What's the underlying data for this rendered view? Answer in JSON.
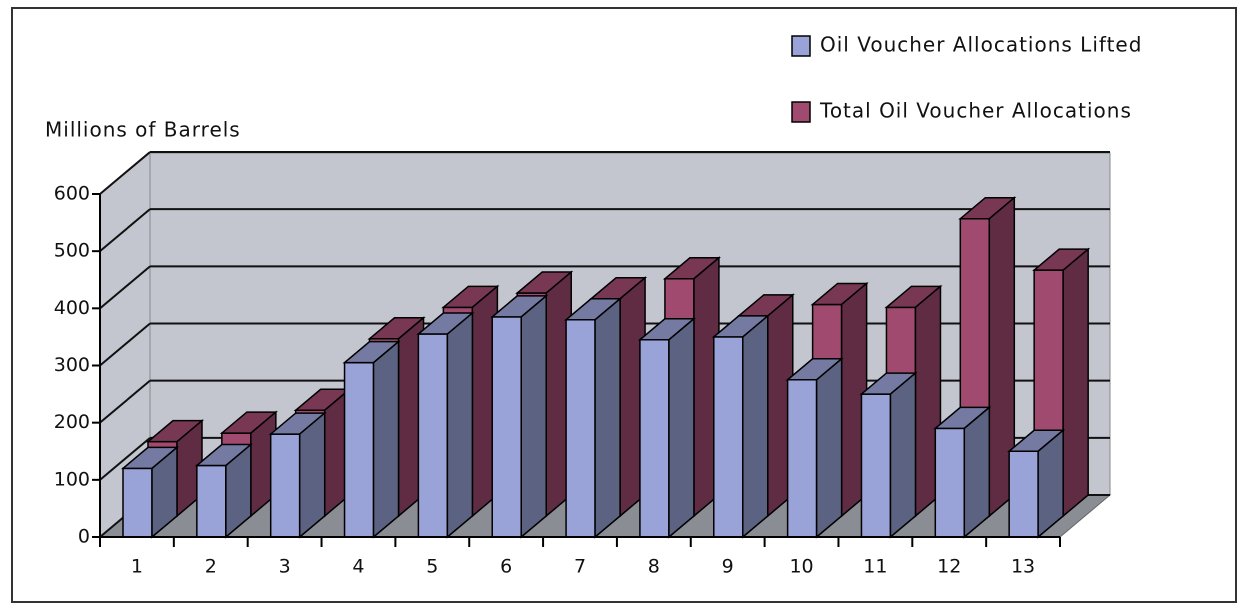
{
  "chart_data": {
    "type": "bar3d",
    "y_axis_label": "Millions of Barrels",
    "categories": [
      "1",
      "2",
      "3",
      "4",
      "5",
      "6",
      "7",
      "8",
      "9",
      "10",
      "11",
      "12",
      "13"
    ],
    "series": [
      {
        "name": "Oil Voucher Allocations Lifted",
        "color": "#9aa3d8",
        "values": [
          120,
          125,
          180,
          305,
          355,
          385,
          380,
          345,
          350,
          275,
          250,
          190,
          150
        ]
      },
      {
        "name": "Total Oil Voucher Allocations",
        "color": "#a04a70",
        "values": [
          130,
          145,
          185,
          310,
          365,
          390,
          380,
          415,
          350,
          370,
          365,
          520,
          430
        ]
      }
    ],
    "ylim": [
      0,
      600
    ],
    "yticks": [
      0,
      100,
      200,
      300,
      400,
      500,
      600
    ],
    "grid": true,
    "legend": "top-right"
  }
}
